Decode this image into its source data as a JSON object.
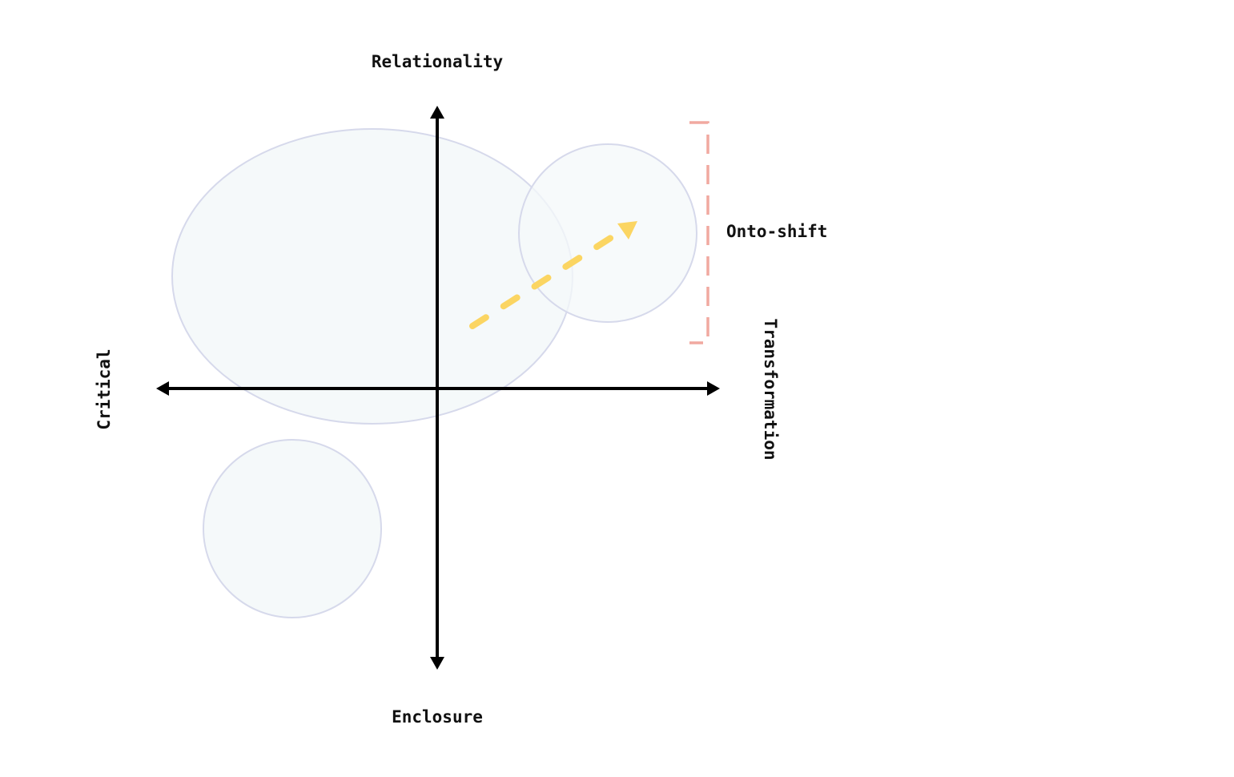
{
  "labels": {
    "top": "Relationality",
    "bottom": "Enclosure",
    "left": "Critical",
    "right": "Transformation",
    "bracket": "Onto-shift"
  },
  "colors": {
    "axis": "#000000",
    "region_fill": "#f4f8fa",
    "region_stroke": "#d6d9eb",
    "arrow": "#fbd562",
    "bracket": "#f1a9a0",
    "text": "#111111"
  },
  "icons": {
    "axis_arrowheads": "triangle-arrowhead-icon",
    "shift_arrow": "dashed-arrow-icon",
    "bracket": "dashed-bracket-icon"
  }
}
